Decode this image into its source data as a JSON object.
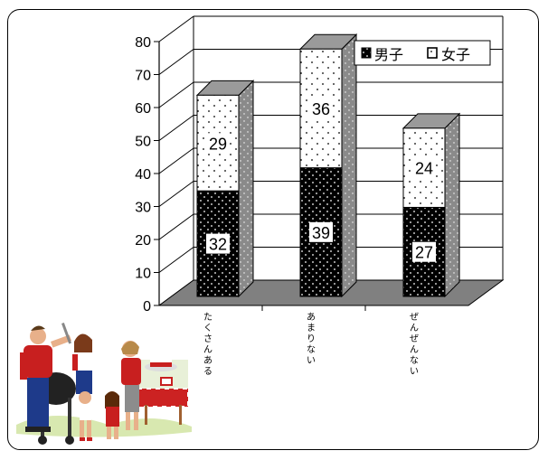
{
  "header_fragment": "",
  "chart_data": {
    "type": "bar",
    "stacked": true,
    "three_d": true,
    "categories": [
      "たくさんある",
      "あまりない",
      "ぜんぜんない"
    ],
    "series": [
      {
        "name": "男子",
        "values": [
          32,
          39,
          27
        ],
        "pattern": "black-dotted"
      },
      {
        "name": "女子",
        "values": [
          29,
          36,
          24
        ],
        "pattern": "white-dotted"
      }
    ],
    "ylim": [
      0,
      80
    ],
    "yticks": [
      0,
      10,
      20,
      30,
      40,
      50,
      60,
      70,
      80
    ],
    "title": "",
    "xlabel": "",
    "ylabel": "",
    "grid": true,
    "legend_position": "top-right",
    "colors": {
      "boys": "#000000",
      "girls": "#ffffff",
      "floor": "#808080",
      "side": "#808080"
    }
  },
  "clipart": {
    "name": "family-barbecue-picnic-clipart"
  }
}
